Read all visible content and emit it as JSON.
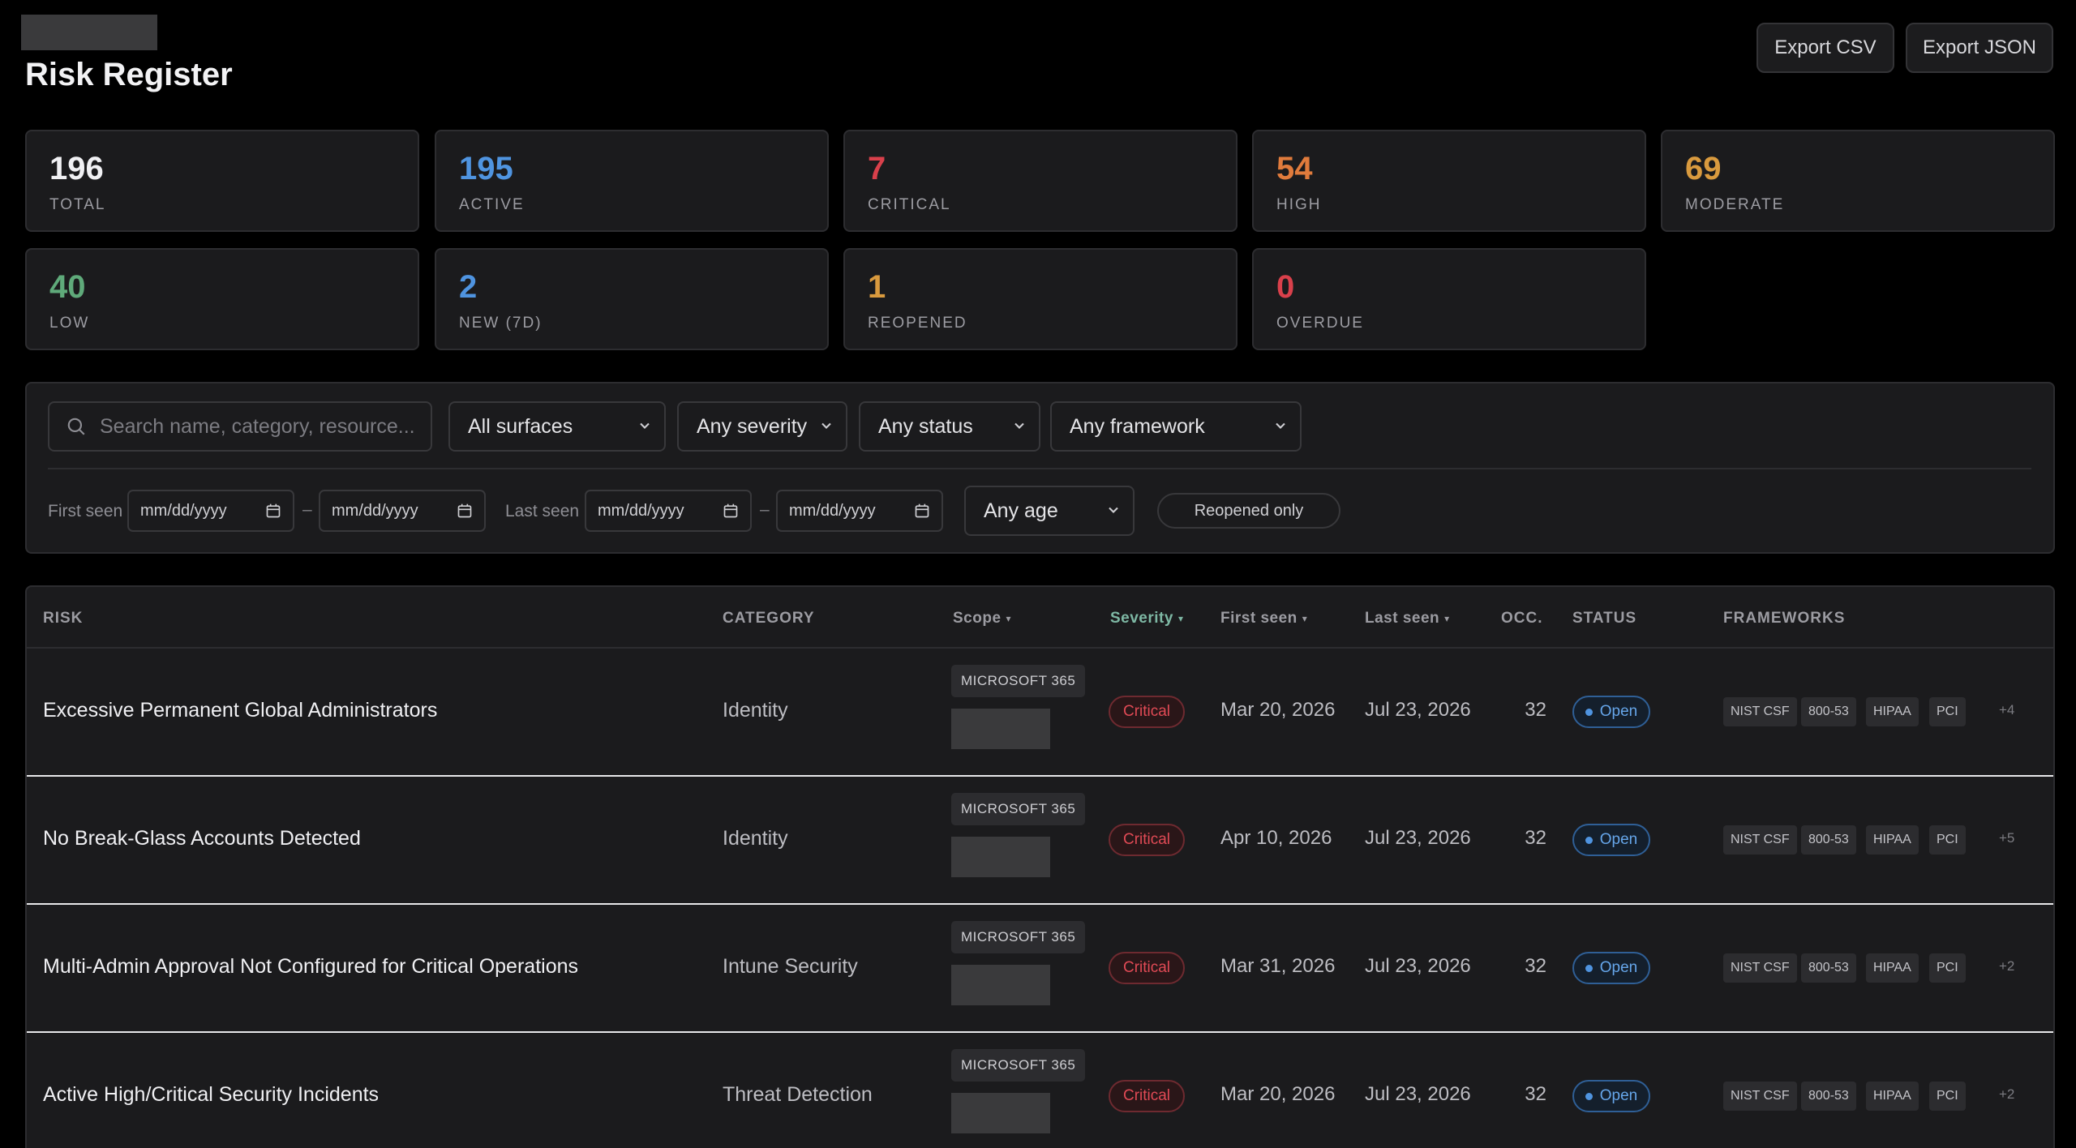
{
  "header": {
    "title": "Risk Register",
    "export_csv": "Export CSV",
    "export_json": "Export JSON"
  },
  "stats": [
    {
      "value": "196",
      "label": "TOTAL",
      "color": "#f0f0f3"
    },
    {
      "value": "195",
      "label": "ACTIVE",
      "color": "#4f94e0"
    },
    {
      "value": "7",
      "label": "CRITICAL",
      "color": "#d9404b"
    },
    {
      "value": "54",
      "label": "HIGH",
      "color": "#e07b3c"
    },
    {
      "value": "69",
      "label": "MODERATE",
      "color": "#d99a3e"
    },
    {
      "value": "40",
      "label": "LOW",
      "color": "#5faa7a"
    },
    {
      "value": "2",
      "label": "NEW (7D)",
      "color": "#4f94e0"
    },
    {
      "value": "1",
      "label": "REOPENED",
      "color": "#d99a3e"
    },
    {
      "value": "0",
      "label": "OVERDUE",
      "color": "#d9404b"
    }
  ],
  "filters": {
    "search_placeholder": "Search name, category, resource...",
    "surfaces": "All surfaces",
    "severity": "Any severity",
    "status": "Any status",
    "framework": "Any framework",
    "first_seen_label": "First seen",
    "last_seen_label": "Last seen",
    "date_placeholder": "mm/dd/yyyy",
    "dash": "–",
    "age": "Any age",
    "reopened": "Reopened only"
  },
  "table": {
    "columns": {
      "risk": "RISK",
      "category": "CATEGORY",
      "scope": "Scope",
      "severity": "Severity",
      "first_seen": "First seen",
      "last_seen": "Last seen",
      "occ": "OCC.",
      "status": "STATUS",
      "frameworks": "FRAMEWORKS"
    },
    "rows": [
      {
        "risk": "Excessive Permanent Global Administrators",
        "category": "Identity",
        "scope": "MICROSOFT 365",
        "severity": "Critical",
        "first_seen": "Mar 20, 2026",
        "last_seen": "Jul 23, 2026",
        "occ": "32",
        "status": "Open",
        "frameworks": [
          "NIST CSF",
          "800-53",
          "HIPAA",
          "PCI"
        ],
        "more": "+4"
      },
      {
        "risk": "No Break-Glass Accounts Detected",
        "category": "Identity",
        "scope": "MICROSOFT 365",
        "severity": "Critical",
        "first_seen": "Apr 10, 2026",
        "last_seen": "Jul 23, 2026",
        "occ": "32",
        "status": "Open",
        "frameworks": [
          "NIST CSF",
          "800-53",
          "HIPAA",
          "PCI"
        ],
        "more": "+5"
      },
      {
        "risk": "Multi-Admin Approval Not Configured for Critical Operations",
        "category": "Intune Security",
        "scope": "MICROSOFT 365",
        "severity": "Critical",
        "first_seen": "Mar 31, 2026",
        "last_seen": "Jul 23, 2026",
        "occ": "32",
        "status": "Open",
        "frameworks": [
          "NIST CSF",
          "800-53",
          "HIPAA",
          "PCI"
        ],
        "more": "+2"
      },
      {
        "risk": "Active High/Critical Security Incidents",
        "category": "Threat Detection",
        "scope": "MICROSOFT 365",
        "severity": "Critical",
        "first_seen": "Mar 20, 2026",
        "last_seen": "Jul 23, 2026",
        "occ": "32",
        "status": "Open",
        "frameworks": [
          "NIST CSF",
          "800-53",
          "HIPAA",
          "PCI"
        ],
        "more": "+2"
      }
    ]
  }
}
